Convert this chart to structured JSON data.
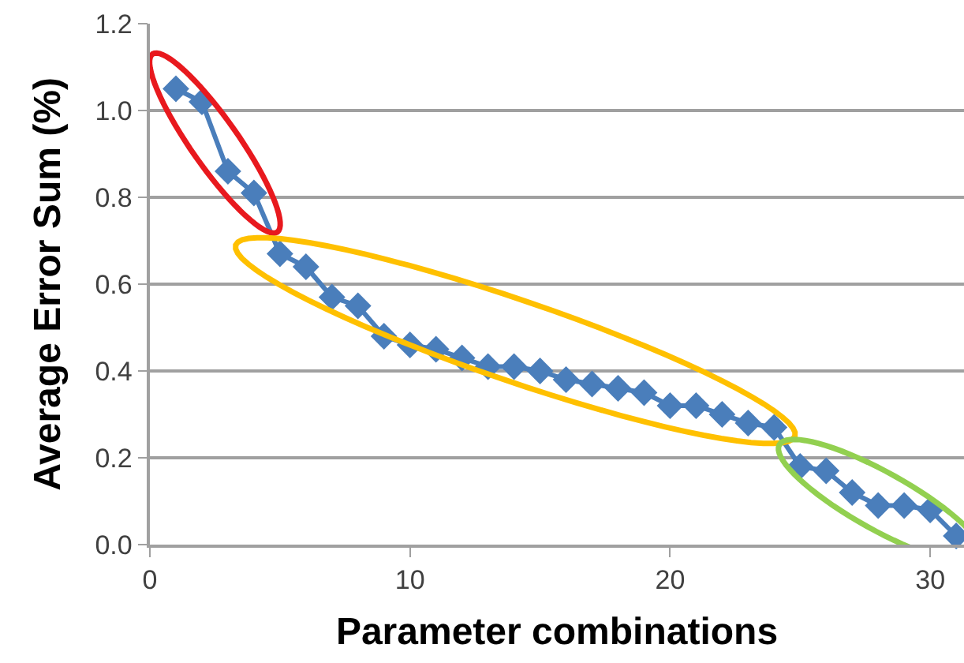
{
  "chart_data": {
    "type": "line",
    "xlabel": "Parameter combinations",
    "ylabel": "Average Error Sum (%)",
    "x": [
      1,
      2,
      3,
      4,
      5,
      6,
      7,
      8,
      9,
      10,
      11,
      12,
      13,
      14,
      15,
      16,
      17,
      18,
      19,
      20,
      21,
      22,
      23,
      24,
      25,
      26,
      27,
      28,
      29,
      30,
      31
    ],
    "series": [
      {
        "color": "#4a7ebb",
        "values": [
          1.05,
          1.02,
          0.86,
          0.81,
          0.67,
          0.64,
          0.57,
          0.55,
          0.48,
          0.46,
          0.45,
          0.43,
          0.41,
          0.41,
          0.4,
          0.38,
          0.37,
          0.36,
          0.35,
          0.32,
          0.32,
          0.3,
          0.28,
          0.27,
          0.18,
          0.17,
          0.12,
          0.09,
          0.09,
          0.08,
          0.02
        ]
      }
    ],
    "xlim": [
      0,
      31.3
    ],
    "xticks": [
      0,
      10,
      20,
      30
    ],
    "ylim": [
      0,
      1.2
    ],
    "yticks": [
      {
        "value": 0,
        "label": "0.0"
      },
      {
        "value": 0.2,
        "label": "0.2"
      },
      {
        "value": 0.4,
        "label": "0.4"
      },
      {
        "value": 0.6,
        "label": "0.6"
      },
      {
        "value": 0.8,
        "label": "0.8"
      },
      {
        "value": 1.0,
        "label": "1.0"
      },
      {
        "value": 1.2,
        "label": "1.2"
      }
    ],
    "grid": "y",
    "marker": "diamond",
    "line_style": "solid"
  }
}
